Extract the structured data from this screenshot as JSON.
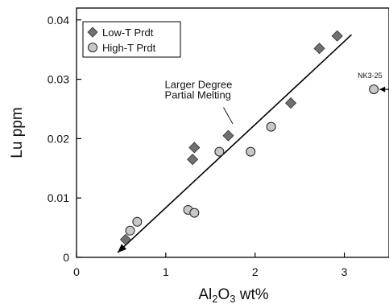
{
  "chart_data": {
    "type": "scatter",
    "title": "",
    "xlabel": {
      "main": "Al",
      "sub1": "2",
      "mid": "O",
      "sub2": "3",
      "unit": " wt%"
    },
    "ylabel": "Lu ppm",
    "xlim": [
      0,
      3.5
    ],
    "ylim": [
      0,
      0.042
    ],
    "xticks": [
      0,
      1,
      2,
      3
    ],
    "xtick_labels": [
      "0",
      "1",
      "2",
      "3"
    ],
    "yticks": [
      0,
      0.01,
      0.02,
      0.03,
      0.04
    ],
    "ytick_labels": [
      "0",
      "0.01",
      "0.02",
      "0.03",
      "0.04"
    ],
    "grid": false,
    "legend_position": "top-left",
    "series": [
      {
        "name": "Low-T Prdt",
        "marker": "diamond",
        "color": "#707070",
        "points": [
          {
            "x": 0.55,
            "y": 0.003
          },
          {
            "x": 1.3,
            "y": 0.0165
          },
          {
            "x": 1.32,
            "y": 0.0185
          },
          {
            "x": 1.7,
            "y": 0.0205
          },
          {
            "x": 2.4,
            "y": 0.026
          },
          {
            "x": 2.72,
            "y": 0.0352
          },
          {
            "x": 2.92,
            "y": 0.0373
          }
        ]
      },
      {
        "name": "High-T Prdt",
        "marker": "circle",
        "color": "#c8c8c8",
        "points": [
          {
            "x": 0.6,
            "y": 0.0045
          },
          {
            "x": 0.68,
            "y": 0.006
          },
          {
            "x": 1.25,
            "y": 0.008
          },
          {
            "x": 1.32,
            "y": 0.0075
          },
          {
            "x": 1.6,
            "y": 0.0178
          },
          {
            "x": 1.95,
            "y": 0.0178
          },
          {
            "x": 2.18,
            "y": 0.022
          },
          {
            "x": 3.33,
            "y": 0.0283
          }
        ]
      }
    ],
    "trend_arrow": {
      "from": {
        "x": 3.08,
        "y": 0.0375
      },
      "to": {
        "x": 0.46,
        "y": 0.0008
      }
    },
    "annotations": [
      {
        "text_lines": [
          "Larger Degree",
          "Partial Melting"
        ],
        "anchor": {
          "x": 1.75,
          "y": 0.0225
        },
        "text_at": {
          "x": 0.97,
          "y": 0.0285
        }
      },
      {
        "text": "NK3-25",
        "point": {
          "x": 3.33,
          "y": 0.0283
        }
      }
    ]
  }
}
